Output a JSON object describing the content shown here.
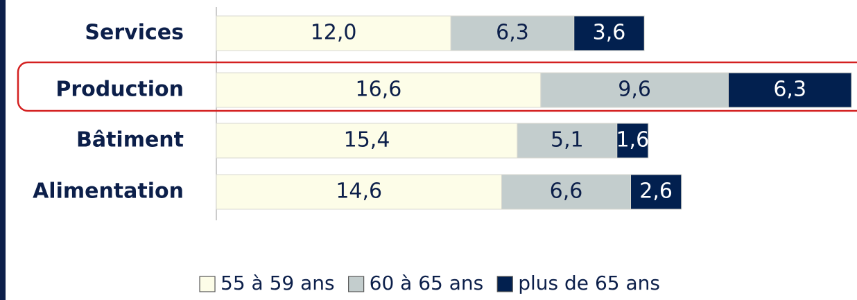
{
  "chart_data": {
    "type": "stacked-bar-horizontal",
    "categories": [
      "Services",
      "Production",
      "Bâtiment",
      "Alimentation"
    ],
    "series": [
      {
        "name": "55 à 59 ans",
        "color": "#fdfde8",
        "values": [
          12.0,
          16.6,
          15.4,
          14.6
        ],
        "value_labels": [
          "12,0",
          "16,6",
          "15,4",
          "14,6"
        ]
      },
      {
        "name": "60 à 65 ans",
        "color": "#c3cdcd",
        "values": [
          6.3,
          9.6,
          5.1,
          6.6
        ],
        "value_labels": [
          "6,3",
          "9,6",
          "5,1",
          "6,6"
        ]
      },
      {
        "name": "plus de 65 ans",
        "color": "#02204f",
        "values": [
          3.6,
          6.3,
          1.6,
          2.6
        ],
        "value_labels": [
          "3,6",
          "6,3",
          "1,6",
          "2,6"
        ]
      }
    ],
    "legend": "bottom"
  }
}
